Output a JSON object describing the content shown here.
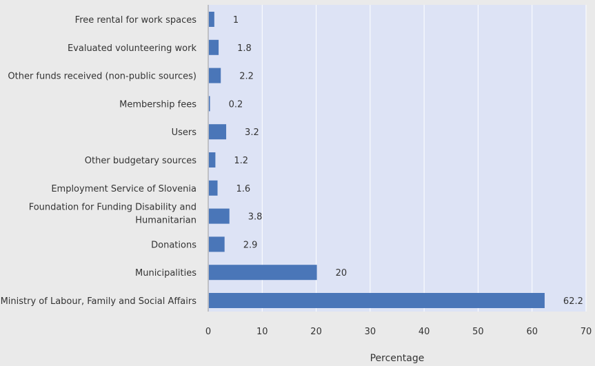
{
  "chart_data": {
    "type": "bar",
    "orientation": "horizontal",
    "categories": [
      "Free rental for work spaces",
      "Evaluated volunteering work",
      "Other funds received (non-public sources)",
      "Membership fees",
      "Users",
      "Other budgetary sources",
      "Employment Service of Slovenia",
      "Foundation for Funding Disability and Humanitarian",
      "Donations",
      "Municipalities",
      "Ministry of Labour, Family and Social Affairs"
    ],
    "values": [
      1,
      1.8,
      2.2,
      0.2,
      3.2,
      1.2,
      1.6,
      3.8,
      2.9,
      20,
      62.2
    ],
    "data_labels": [
      "1",
      "1.8",
      "2.2",
      "0.2",
      "3.2",
      "1.2",
      "1.6",
      "3.8",
      "2.9",
      "20",
      "62.2"
    ],
    "xlabel": "Percentage",
    "xlim": [
      0,
      70
    ],
    "xticks": [
      "0",
      "10",
      "20",
      "30",
      "40",
      "50",
      "60",
      "70"
    ],
    "grid": "vertical",
    "colors": {
      "bar": "#4a76b8",
      "plot_background": "#dde3f5",
      "page_background": "#eaeaea",
      "gridline": "#ffffff",
      "text": "#333333"
    }
  }
}
